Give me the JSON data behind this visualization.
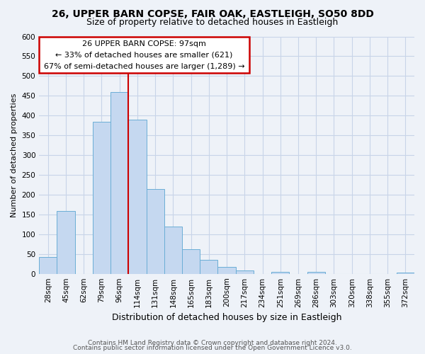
{
  "title": "26, UPPER BARN COPSE, FAIR OAK, EASTLEIGH, SO50 8DD",
  "subtitle": "Size of property relative to detached houses in Eastleigh",
  "xlabel": "Distribution of detached houses by size in Eastleigh",
  "ylabel": "Number of detached properties",
  "bar_labels": [
    "28sqm",
    "45sqm",
    "62sqm",
    "79sqm",
    "96sqm",
    "114sqm",
    "131sqm",
    "148sqm",
    "165sqm",
    "183sqm",
    "200sqm",
    "217sqm",
    "234sqm",
    "251sqm",
    "269sqm",
    "286sqm",
    "303sqm",
    "320sqm",
    "338sqm",
    "355sqm",
    "372sqm"
  ],
  "bar_values": [
    42,
    158,
    0,
    385,
    460,
    390,
    215,
    120,
    62,
    35,
    18,
    8,
    0,
    5,
    0,
    5,
    0,
    0,
    0,
    0,
    3
  ],
  "bar_color": "#c5d8f0",
  "bar_edge_color": "#6baed6",
  "grid_color": "#c8d4e8",
  "annotation_line1": "26 UPPER BARN COPSE: 97sqm",
  "annotation_line2": "← 33% of detached houses are smaller (621)",
  "annotation_line3": "67% of semi-detached houses are larger (1,289) →",
  "annotation_box_color": "#ffffff",
  "annotation_box_edge": "#cc0000",
  "vline_color": "#cc0000",
  "ylim": [
    0,
    600
  ],
  "yticks": [
    0,
    50,
    100,
    150,
    200,
    250,
    300,
    350,
    400,
    450,
    500,
    550,
    600
  ],
  "footer1": "Contains HM Land Registry data © Crown copyright and database right 2024.",
  "footer2": "Contains public sector information licensed under the Open Government Licence v3.0.",
  "bg_color": "#eef2f8",
  "title_fontsize": 10,
  "subtitle_fontsize": 9,
  "xlabel_fontsize": 9,
  "ylabel_fontsize": 8,
  "tick_fontsize": 7.5,
  "footer_fontsize": 6.5
}
